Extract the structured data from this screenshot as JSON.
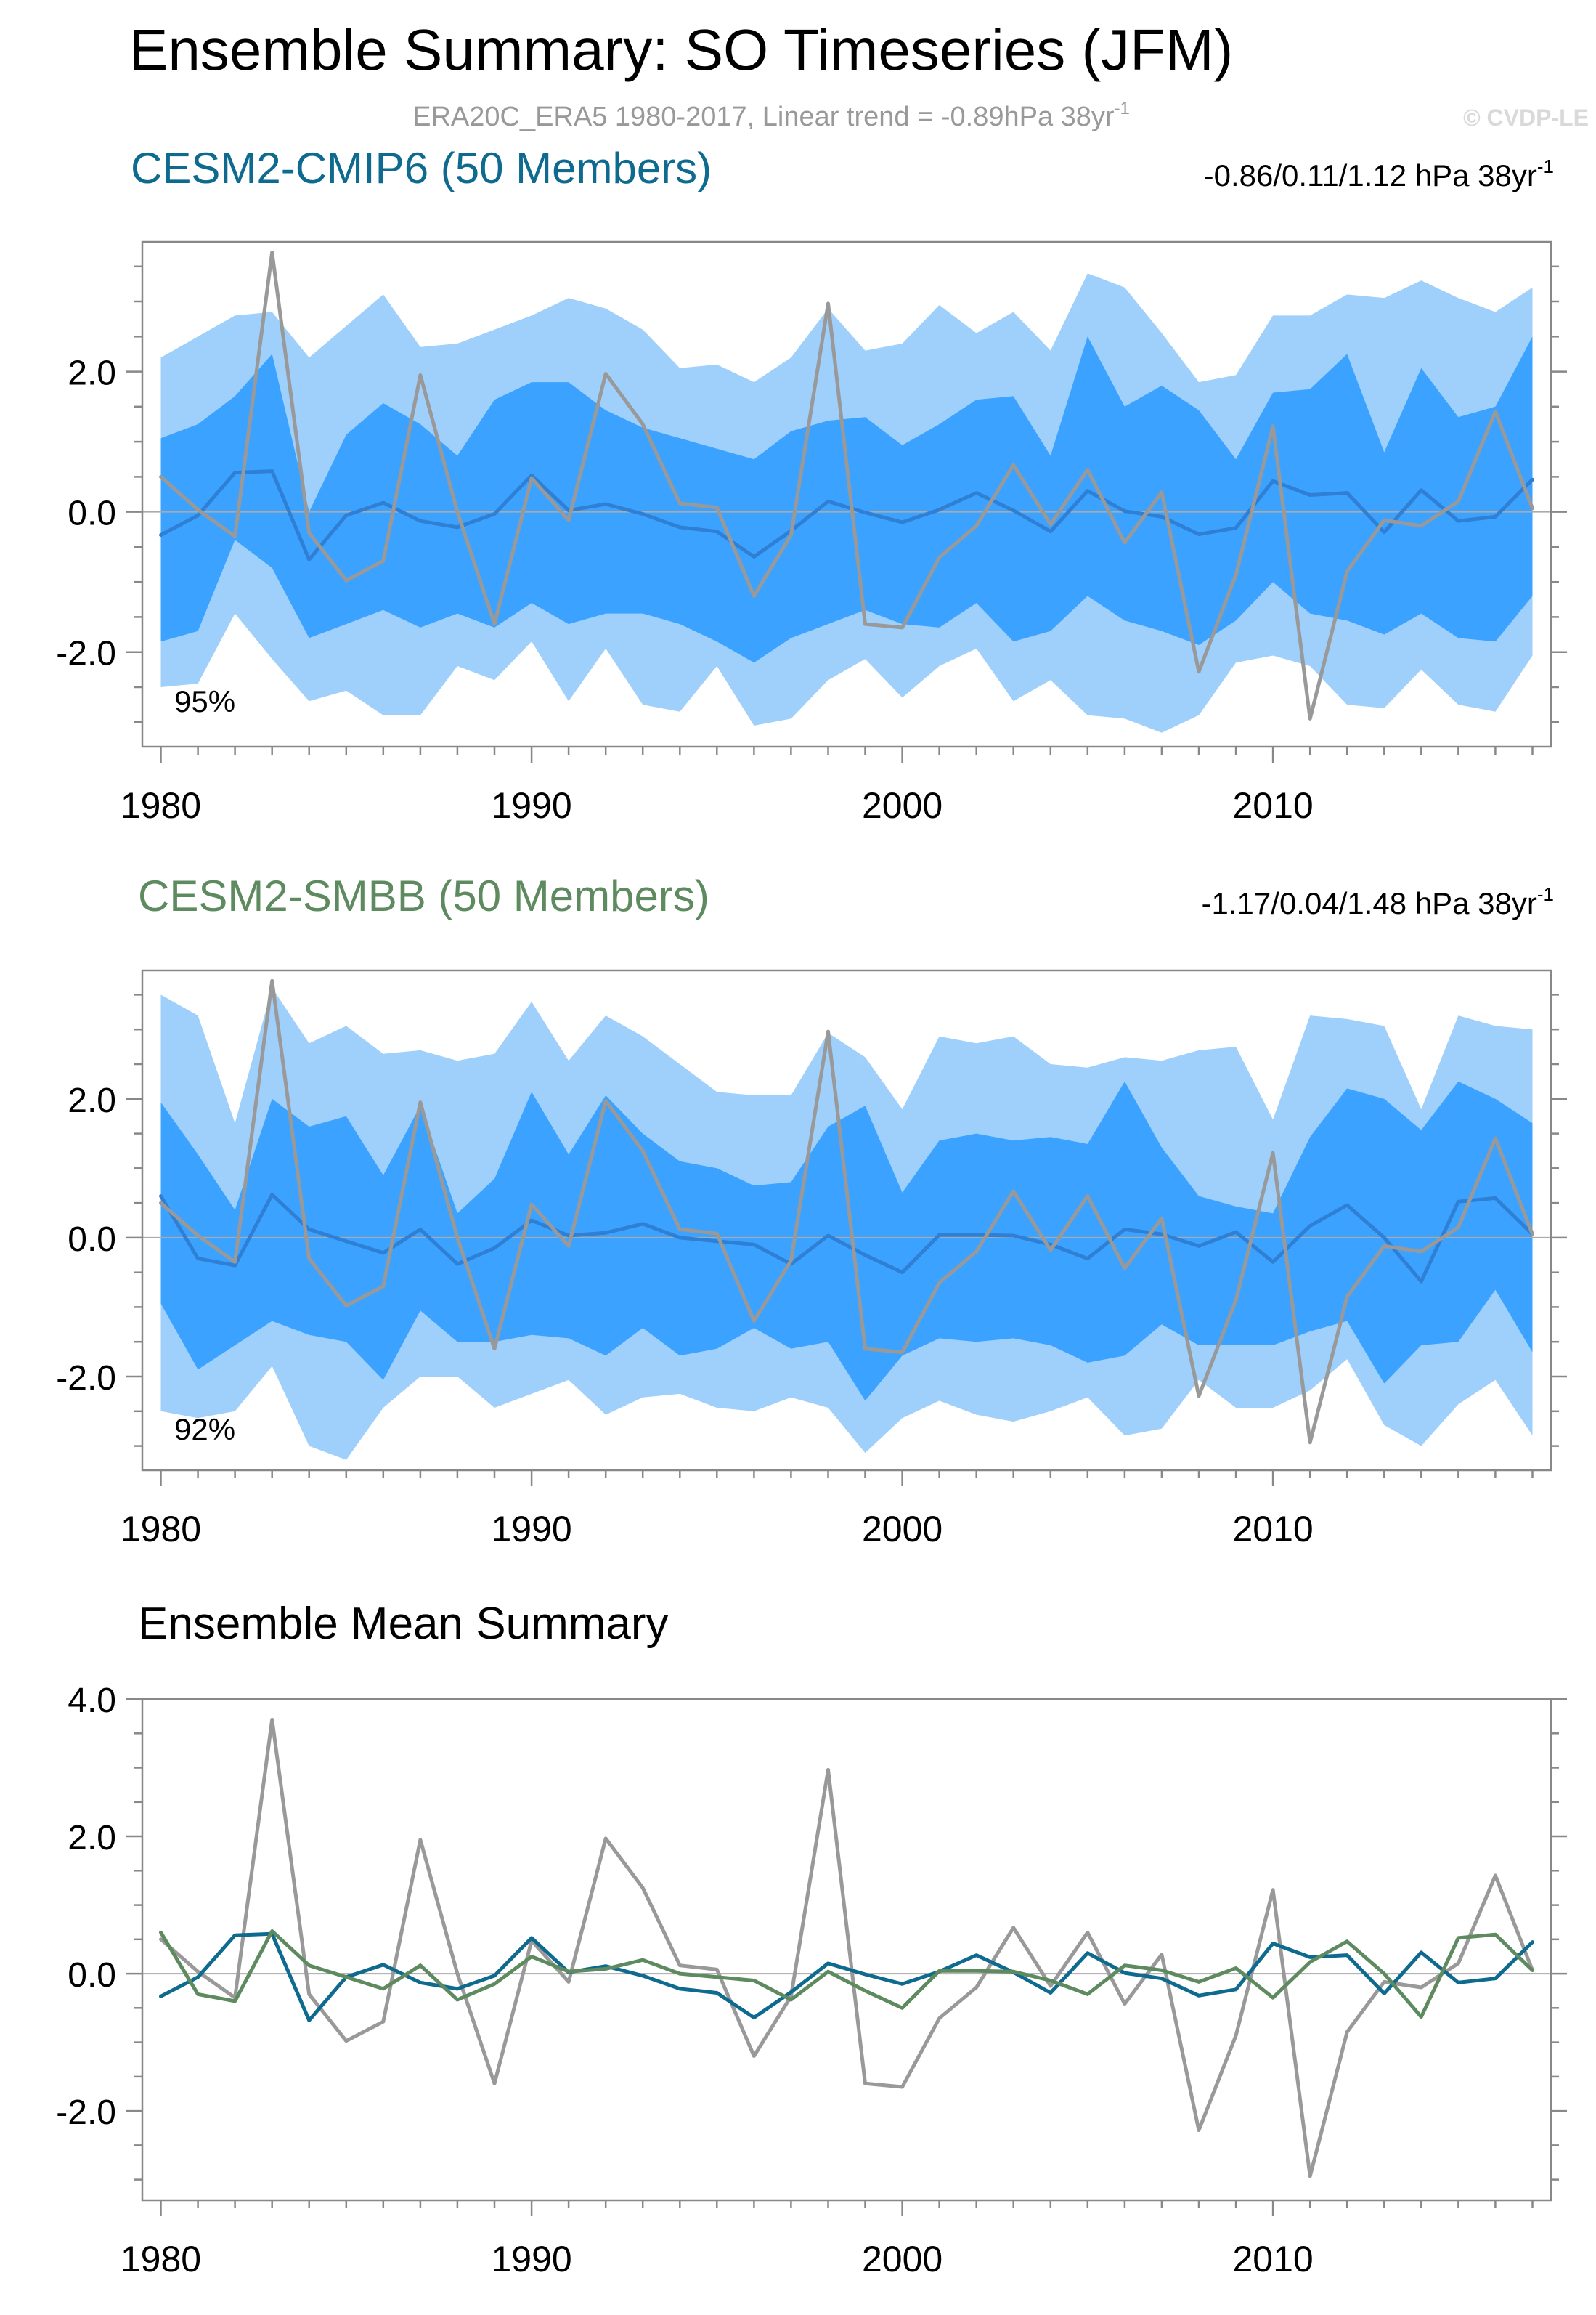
{
  "figure": {
    "title": "Ensemble Summary: SO Timeseries (JFM)",
    "subtitle": "ERA20C_ERA5 1980-2017, Linear trend = -0.89hPa 38yr",
    "subtitle_sup": "-1",
    "watermark": "© CVDP-LE",
    "colors": {
      "outer_band": "#9fcffb",
      "inner_band": "#3ba3ff",
      "member_mean": "#2f7fd4",
      "observations": "#999999",
      "cesm2_cmip6": "#0e6a8e",
      "cesm2_smbb": "#5e8a60",
      "zero_line": "#aaaaaa",
      "axis": "#888888",
      "title_text": "#000000",
      "subtitle_text": "#999999",
      "watermark_text": "#d9d9d9"
    }
  },
  "chart_data": [
    {
      "type": "area",
      "title": "CESM2-CMIP6 (50 Members)",
      "title_color": "#0e6a8e",
      "trend_label": "-0.86/0.11/1.12 hPa 38yr",
      "trend_sup": "-1",
      "percent_label": "95%",
      "x": [
        1980,
        1981,
        1982,
        1983,
        1984,
        1985,
        1986,
        1987,
        1988,
        1989,
        1990,
        1991,
        1992,
        1993,
        1994,
        1995,
        1996,
        1997,
        1998,
        1999,
        2000,
        2001,
        2002,
        2003,
        2004,
        2005,
        2006,
        2007,
        2008,
        2009,
        2010,
        2011,
        2012,
        2013,
        2014,
        2015,
        2016,
        2017
      ],
      "xlim": [
        1979.5,
        2017.5
      ],
      "ylim": [
        -3.35,
        3.85
      ],
      "xticks": [
        1980,
        1990,
        2000,
        2010
      ],
      "yticks": [
        2.0,
        0.0,
        -2.0
      ],
      "ytick_labels": [
        "2.0",
        "0.0",
        "-2.0"
      ],
      "outer_upper": [
        2.2,
        2.5,
        2.8,
        2.85,
        2.2,
        2.65,
        3.1,
        2.35,
        2.4,
        2.6,
        2.8,
        3.05,
        2.9,
        2.6,
        2.05,
        2.1,
        1.85,
        2.2,
        2.9,
        2.3,
        2.4,
        2.95,
        2.55,
        2.85,
        2.3,
        3.4,
        3.2,
        2.55,
        1.85,
        1.95,
        2.8,
        2.8,
        3.1,
        3.05,
        3.3,
        3.05,
        2.85,
        3.2
      ],
      "outer_lower": [
        -2.5,
        -2.45,
        -1.45,
        -2.1,
        -2.7,
        -2.55,
        -2.9,
        -2.9,
        -2.2,
        -2.4,
        -1.85,
        -2.7,
        -1.95,
        -2.75,
        -2.85,
        -2.2,
        -3.05,
        -2.95,
        -2.4,
        -2.1,
        -2.65,
        -2.2,
        -1.95,
        -2.7,
        -2.4,
        -2.9,
        -2.95,
        -3.15,
        -2.9,
        -2.15,
        -2.05,
        -2.2,
        -2.75,
        -2.8,
        -2.25,
        -2.75,
        -2.85,
        -2.05
      ],
      "inner_upper": [
        1.05,
        1.25,
        1.65,
        2.25,
        0.0,
        1.1,
        1.55,
        1.25,
        0.8,
        1.6,
        1.85,
        1.85,
        1.45,
        1.2,
        1.05,
        0.9,
        0.75,
        1.15,
        1.3,
        1.35,
        0.95,
        1.25,
        1.6,
        1.65,
        0.8,
        2.5,
        1.5,
        1.8,
        1.45,
        0.75,
        1.7,
        1.75,
        2.25,
        0.85,
        2.05,
        1.35,
        1.5,
        2.5
      ],
      "inner_lower": [
        -1.85,
        -1.7,
        -0.4,
        -0.8,
        -1.8,
        -1.6,
        -1.4,
        -1.65,
        -1.45,
        -1.65,
        -1.3,
        -1.6,
        -1.45,
        -1.45,
        -1.6,
        -1.85,
        -2.15,
        -1.8,
        -1.6,
        -1.4,
        -1.6,
        -1.65,
        -1.3,
        -1.85,
        -1.7,
        -1.2,
        -1.55,
        -1.7,
        -1.9,
        -1.55,
        -1.0,
        -1.45,
        -1.55,
        -1.75,
        -1.45,
        -1.8,
        -1.85,
        -1.2
      ],
      "ensemble_mean": [
        -0.33,
        -0.05,
        0.56,
        0.58,
        -0.68,
        -0.05,
        0.13,
        -0.13,
        -0.22,
        -0.03,
        0.52,
        0.02,
        0.11,
        -0.03,
        -0.22,
        -0.28,
        -0.64,
        -0.27,
        0.15,
        -0.01,
        -0.15,
        0.03,
        0.27,
        0.02,
        -0.28,
        0.3,
        0.01,
        -0.07,
        -0.32,
        -0.23,
        0.44,
        0.24,
        0.27,
        -0.29,
        0.31,
        -0.13,
        -0.07,
        0.46
      ],
      "observations": [
        0.5,
        0.03,
        -0.35,
        3.7,
        -0.3,
        -0.98,
        -0.7,
        1.95,
        0.0,
        -1.6,
        0.48,
        -0.12,
        1.97,
        1.25,
        0.12,
        0.06,
        -1.2,
        -0.33,
        2.97,
        -1.6,
        -1.65,
        -0.65,
        -0.2,
        0.67,
        -0.18,
        0.6,
        -0.44,
        0.28,
        -2.28,
        -0.9,
        1.22,
        -2.95,
        -0.85,
        -0.12,
        -0.2,
        0.15,
        1.43,
        0.05
      ]
    },
    {
      "type": "area",
      "title": "CESM2-SMBB (50 Members)",
      "title_color": "#5e8a60",
      "trend_label": "-1.17/0.04/1.48 hPa 38yr",
      "trend_sup": "-1",
      "percent_label": "92%",
      "x": [
        1980,
        1981,
        1982,
        1983,
        1984,
        1985,
        1986,
        1987,
        1988,
        1989,
        1990,
        1991,
        1992,
        1993,
        1994,
        1995,
        1996,
        1997,
        1998,
        1999,
        2000,
        2001,
        2002,
        2003,
        2004,
        2005,
        2006,
        2007,
        2008,
        2009,
        2010,
        2011,
        2012,
        2013,
        2014,
        2015,
        2016,
        2017
      ],
      "xlim": [
        1979.5,
        2017.5
      ],
      "ylim": [
        -3.35,
        3.85
      ],
      "xticks": [
        1980,
        1990,
        2000,
        2010
      ],
      "yticks": [
        2.0,
        0.0,
        -2.0
      ],
      "ytick_labels": [
        "2.0",
        "0.0",
        "-2.0"
      ],
      "outer_upper": [
        3.5,
        3.2,
        1.65,
        3.6,
        2.8,
        3.05,
        2.65,
        2.7,
        2.55,
        2.65,
        3.4,
        2.55,
        3.2,
        2.9,
        2.5,
        2.1,
        2.05,
        2.05,
        2.95,
        2.6,
        1.85,
        2.9,
        2.8,
        2.9,
        2.5,
        2.45,
        2.6,
        2.55,
        2.7,
        2.75,
        1.7,
        3.2,
        3.15,
        3.05,
        1.85,
        3.2,
        3.05,
        3.0
      ],
      "outer_lower": [
        -2.5,
        -2.6,
        -2.5,
        -1.85,
        -3.0,
        -3.2,
        -2.45,
        -2.0,
        -2.0,
        -2.45,
        -2.25,
        -2.05,
        -2.55,
        -2.3,
        -2.25,
        -2.45,
        -2.5,
        -2.3,
        -2.45,
        -3.1,
        -2.6,
        -2.35,
        -2.55,
        -2.65,
        -2.5,
        -2.3,
        -2.85,
        -2.75,
        -2.05,
        -2.45,
        -2.45,
        -2.2,
        -1.75,
        -2.7,
        -3.0,
        -2.4,
        -2.05,
        -2.85
      ],
      "inner_upper": [
        1.95,
        1.2,
        0.4,
        2.0,
        1.6,
        1.75,
        0.9,
        1.9,
        0.35,
        0.85,
        2.1,
        1.2,
        2.05,
        1.5,
        1.1,
        1.0,
        0.75,
        0.8,
        1.6,
        1.9,
        0.65,
        1.4,
        1.5,
        1.4,
        1.45,
        1.35,
        2.25,
        1.3,
        0.6,
        0.45,
        0.35,
        1.45,
        2.15,
        2.0,
        1.55,
        2.25,
        2.0,
        1.65
      ],
      "inner_lower": [
        -0.95,
        -1.9,
        -1.55,
        -1.2,
        -1.4,
        -1.5,
        -2.05,
        -1.05,
        -1.5,
        -1.5,
        -1.4,
        -1.45,
        -1.7,
        -1.3,
        -1.7,
        -1.6,
        -1.3,
        -1.6,
        -1.5,
        -2.35,
        -1.7,
        -1.45,
        -1.5,
        -1.45,
        -1.55,
        -1.8,
        -1.7,
        -1.25,
        -1.55,
        -1.55,
        -1.55,
        -1.35,
        -1.2,
        -2.1,
        -1.55,
        -1.5,
        -0.75,
        -1.65
      ],
      "ensemble_mean": [
        0.6,
        -0.3,
        -0.4,
        0.62,
        0.12,
        -0.05,
        -0.22,
        0.12,
        -0.38,
        -0.15,
        0.25,
        0.03,
        0.07,
        0.2,
        0.0,
        -0.05,
        -0.1,
        -0.38,
        0.03,
        -0.25,
        -0.5,
        0.04,
        0.04,
        0.03,
        -0.1,
        -0.3,
        0.12,
        0.05,
        -0.12,
        0.08,
        -0.35,
        0.17,
        0.47,
        0.0,
        -0.63,
        0.52,
        0.57,
        0.05
      ],
      "observations": [
        0.5,
        0.03,
        -0.35,
        3.7,
        -0.3,
        -0.98,
        -0.7,
        1.95,
        0.0,
        -1.6,
        0.48,
        -0.12,
        1.97,
        1.25,
        0.12,
        0.06,
        -1.2,
        -0.33,
        2.97,
        -1.6,
        -1.65,
        -0.65,
        -0.2,
        0.67,
        -0.18,
        0.6,
        -0.44,
        0.28,
        -2.28,
        -0.9,
        1.22,
        -2.95,
        -0.85,
        -0.12,
        -0.2,
        0.15,
        1.43,
        0.05
      ]
    },
    {
      "type": "line",
      "title": "Ensemble Mean Summary",
      "x": [
        1980,
        1981,
        1982,
        1983,
        1984,
        1985,
        1986,
        1987,
        1988,
        1989,
        1990,
        1991,
        1992,
        1993,
        1994,
        1995,
        1996,
        1997,
        1998,
        1999,
        2000,
        2001,
        2002,
        2003,
        2004,
        2005,
        2006,
        2007,
        2008,
        2009,
        2010,
        2011,
        2012,
        2013,
        2014,
        2015,
        2016,
        2017
      ],
      "xlim": [
        1979.5,
        2017.5
      ],
      "ylim": [
        -3.3,
        4.0
      ],
      "xticks": [
        1980,
        1990,
        2000,
        2010
      ],
      "yticks": [
        4.0,
        2.0,
        0.0,
        -2.0
      ],
      "ytick_labels": [
        "4.0",
        "2.0",
        "0.0",
        "-2.0"
      ],
      "series": [
        {
          "name": "ERA20C_ERA5",
          "color": "#999999",
          "values": [
            0.5,
            0.03,
            -0.35,
            3.7,
            -0.3,
            -0.98,
            -0.7,
            1.95,
            0.0,
            -1.6,
            0.48,
            -0.12,
            1.97,
            1.25,
            0.12,
            0.06,
            -1.2,
            -0.33,
            2.97,
            -1.6,
            -1.65,
            -0.65,
            -0.2,
            0.67,
            -0.18,
            0.6,
            -0.44,
            0.28,
            -2.28,
            -0.9,
            1.22,
            -2.95,
            -0.85,
            -0.12,
            -0.2,
            0.15,
            1.43,
            0.05
          ]
        },
        {
          "name": "CESM2-CMIP6",
          "color": "#0e6a8e",
          "values": [
            -0.33,
            -0.05,
            0.56,
            0.58,
            -0.68,
            -0.05,
            0.13,
            -0.13,
            -0.22,
            -0.03,
            0.52,
            0.02,
            0.11,
            -0.03,
            -0.22,
            -0.28,
            -0.64,
            -0.27,
            0.15,
            -0.01,
            -0.15,
            0.03,
            0.27,
            0.02,
            -0.28,
            0.3,
            0.01,
            -0.07,
            -0.32,
            -0.23,
            0.44,
            0.24,
            0.27,
            -0.29,
            0.31,
            -0.13,
            -0.07,
            0.46
          ]
        },
        {
          "name": "CESM2-SMBB",
          "color": "#5e8a60",
          "values": [
            0.6,
            -0.3,
            -0.4,
            0.62,
            0.12,
            -0.05,
            -0.22,
            0.12,
            -0.38,
            -0.15,
            0.25,
            0.03,
            0.07,
            0.2,
            0.0,
            -0.05,
            -0.1,
            -0.38,
            0.03,
            -0.25,
            -0.5,
            0.04,
            0.04,
            0.03,
            -0.1,
            -0.3,
            0.12,
            0.05,
            -0.12,
            0.08,
            -0.35,
            0.17,
            0.47,
            0.0,
            -0.63,
            0.52,
            0.57,
            0.05
          ]
        }
      ]
    }
  ]
}
